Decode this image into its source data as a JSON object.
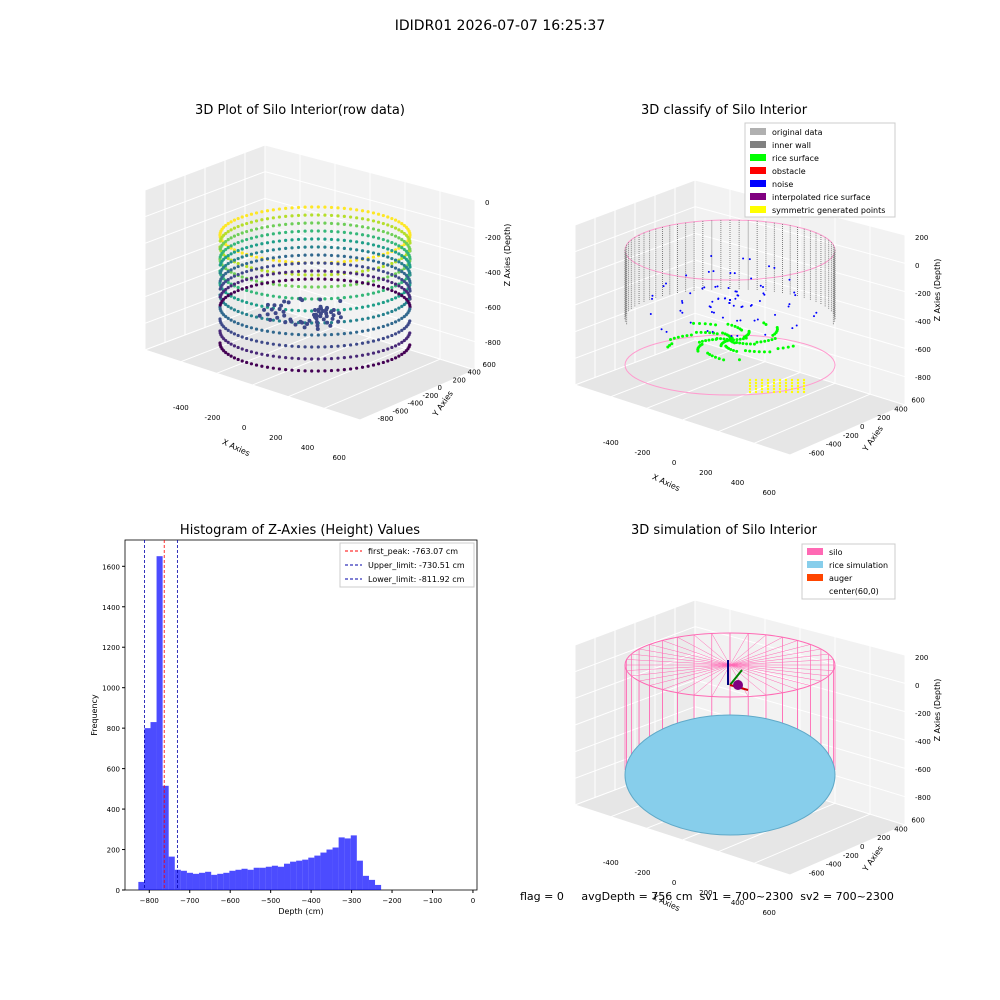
{
  "figure": {
    "suptitle": "IDIDR01 2026-07-07 16:25:37"
  },
  "panels": {
    "raw": {
      "title": "3D Plot of Silo Interior(row data)",
      "xlabel": "X Axies",
      "ylabel": "Y Axies",
      "zlabel": "Z Axies (Depth)",
      "xticks": [
        "-400",
        "-200",
        "0",
        "200",
        "400",
        "600"
      ],
      "yticks": [
        "600",
        "400",
        "200",
        "0",
        "-200",
        "-400",
        "-600",
        "-800"
      ],
      "zticks": [
        "0",
        "-200",
        "-400",
        "-600",
        "-800"
      ]
    },
    "classify": {
      "title": "3D classify of Silo Interior",
      "xlabel": "X Axies",
      "ylabel": "Y Axies",
      "zlabel": "Z Axies (Depth)",
      "xticks": [
        "-400",
        "-200",
        "0",
        "200",
        "400",
        "600"
      ],
      "yticks": [
        "600",
        "400",
        "200",
        "0",
        "-200",
        "-400",
        "-600"
      ],
      "zticks": [
        "200",
        "0",
        "-200",
        "-400",
        "-600",
        "-800"
      ],
      "legend": [
        {
          "label": "original data",
          "color": "#b0b0b0"
        },
        {
          "label": "inner wall",
          "color": "#808080"
        },
        {
          "label": "rice surface",
          "color": "#00ff00"
        },
        {
          "label": "obstacle",
          "color": "#ff0000"
        },
        {
          "label": "noise",
          "color": "#0000ff"
        },
        {
          "label": "interpolated rice surface",
          "color": "#800080"
        },
        {
          "label": "symmetric generated points",
          "color": "#ffff00"
        }
      ]
    },
    "sim": {
      "title": "3D simulation of Silo Interior",
      "xlabel": "X Axies",
      "ylabel": "Y Axies",
      "zlabel": "Z Axies (Depth)",
      "xticks": [
        "-400",
        "-200",
        "0",
        "200",
        "400",
        "600"
      ],
      "yticks": [
        "600",
        "400",
        "200",
        "0",
        "-200",
        "-400",
        "-600"
      ],
      "zticks": [
        "200",
        "0",
        "-200",
        "-400",
        "-600",
        "-800"
      ],
      "legend": [
        {
          "label": "silo",
          "color": "#ff69b4"
        },
        {
          "label": "rice simulation",
          "color": "#87ceeb"
        },
        {
          "label": "auger",
          "color": "#ff4500"
        },
        {
          "label": "center(60,0)",
          "color": "none"
        }
      ]
    }
  },
  "chart_data": [
    {
      "type": "bar",
      "title": "Histogram of Z-Axies (Height) Values",
      "xlabel": "Depth (cm)",
      "ylabel": "Frequency",
      "xlim": [
        -860,
        10
      ],
      "ylim": [
        0,
        1730
      ],
      "xticks": [
        -800,
        -700,
        -600,
        -500,
        -400,
        -300,
        -200,
        -100,
        0
      ],
      "yticks": [
        0,
        200,
        400,
        600,
        800,
        1000,
        1200,
        1400,
        1600
      ],
      "bar_color": "#0000ff",
      "bin_width": 15,
      "bin_edges_start": -827,
      "values": [
        40,
        800,
        830,
        1650,
        515,
        165,
        100,
        95,
        85,
        80,
        85,
        90,
        75,
        80,
        85,
        95,
        100,
        105,
        100,
        110,
        110,
        115,
        120,
        115,
        130,
        140,
        145,
        150,
        160,
        170,
        185,
        200,
        210,
        260,
        255,
        270,
        145,
        70,
        50,
        25
      ],
      "reference_lines": [
        {
          "label": "first_peak: -763.07 cm",
          "x": -763.07,
          "color": "#ff0000"
        },
        {
          "label": "Upper_limit: -730.51 cm",
          "x": -730.51,
          "color": "#0000aa"
        },
        {
          "label": "Lower_limit: -811.92 cm",
          "x": -811.92,
          "color": "#0000aa"
        }
      ]
    }
  ],
  "status": {
    "flag": "flag = 0",
    "avg": "avgDepth = 756 cm",
    "sv1": "sv1 = 700~2300",
    "sv2": "sv2 = 700~2300"
  }
}
